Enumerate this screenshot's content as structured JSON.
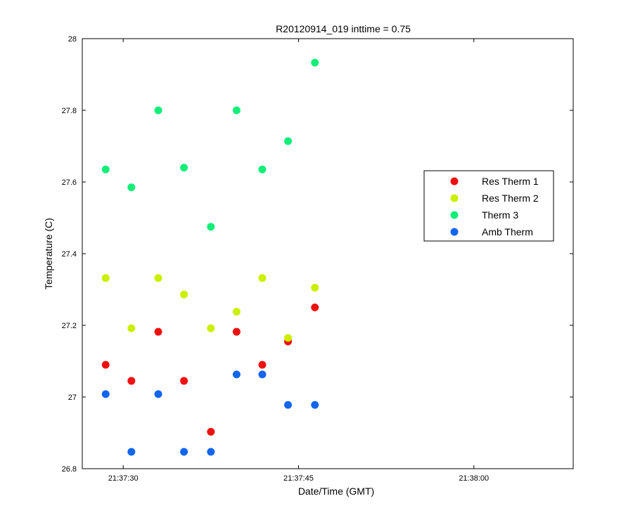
{
  "chart_data": {
    "type": "scatter",
    "title": "R20120914_019 inttime = 0.75",
    "xlabel": "Date/Time (GMT)",
    "ylabel": "Temperature (C)",
    "x_unit": "time (GMT, hh:mm:ss)",
    "xlim": [
      "21:37:26.5",
      "21:38:08.5"
    ],
    "ylim": [
      26.8,
      28.0
    ],
    "x_ticks": [
      {
        "value": "21:37:30",
        "label": "21:37:30"
      },
      {
        "value": "21:37:45",
        "label": "21:37:45"
      },
      {
        "value": "21:38:00",
        "label": "21:38:00"
      }
    ],
    "y_ticks": [
      {
        "value": 26.8,
        "label": "26.8"
      },
      {
        "value": 27.0,
        "label": "27"
      },
      {
        "value": 27.2,
        "label": "27.2"
      },
      {
        "value": 27.4,
        "label": "27.4"
      },
      {
        "value": 27.6,
        "label": "27.6"
      },
      {
        "value": 27.8,
        "label": "27.8"
      },
      {
        "value": 28.0,
        "label": "28"
      }
    ],
    "x": [
      "21:37:28.5",
      "21:37:31",
      "21:37:33.3",
      "21:37:35.5",
      "21:37:38",
      "21:37:40.3",
      "21:37:42.7",
      "21:37:45"
    ],
    "grid": false,
    "legend_position": "right",
    "series": [
      {
        "name": "Res Therm 1",
        "color": "#ee1111",
        "points": [
          {
            "x": "21:37:28.5",
            "y": 27.09
          },
          {
            "x": "21:37:30.7",
            "y": 27.045
          },
          {
            "x": "21:37:33.0",
            "y": 27.182
          },
          {
            "x": "21:37:35.2",
            "y": 27.045
          },
          {
            "x": "21:37:37.5",
            "y": 26.903
          },
          {
            "x": "21:37:39.7",
            "y": 27.182
          },
          {
            "x": "21:37:41.9",
            "y": 27.09
          },
          {
            "x": "21:37:44.1",
            "y": 27.155
          },
          {
            "x": "21:37:46.4",
            "y": 27.25
          }
        ]
      },
      {
        "name": "Res Therm 2",
        "color": "#ccee00",
        "points": [
          {
            "x": "21:37:28.5",
            "y": 27.332
          },
          {
            "x": "21:37:30.7",
            "y": 27.192
          },
          {
            "x": "21:37:33.0",
            "y": 27.332
          },
          {
            "x": "21:37:35.2",
            "y": 27.286
          },
          {
            "x": "21:37:37.5",
            "y": 27.192
          },
          {
            "x": "21:37:39.7",
            "y": 27.238
          },
          {
            "x": "21:37:41.9",
            "y": 27.332
          },
          {
            "x": "21:37:44.1",
            "y": 27.165
          },
          {
            "x": "21:37:46.4",
            "y": 27.305
          }
        ]
      },
      {
        "name": "Therm 3",
        "color": "#11ee77",
        "points": [
          {
            "x": "21:37:28.5",
            "y": 27.635
          },
          {
            "x": "21:37:30.7",
            "y": 27.585
          },
          {
            "x": "21:37:33.0",
            "y": 27.8
          },
          {
            "x": "21:37:35.2",
            "y": 27.64
          },
          {
            "x": "21:37:37.5",
            "y": 27.475
          },
          {
            "x": "21:37:39.7",
            "y": 27.8
          },
          {
            "x": "21:37:41.9",
            "y": 27.635
          },
          {
            "x": "21:37:44.1",
            "y": 27.714
          },
          {
            "x": "21:37:46.4",
            "y": 27.933
          }
        ]
      },
      {
        "name": "Amb Therm",
        "color": "#1166ee",
        "points": [
          {
            "x": "21:37:28.5",
            "y": 27.008
          },
          {
            "x": "21:37:30.7",
            "y": 26.847
          },
          {
            "x": "21:37:33.0",
            "y": 27.008
          },
          {
            "x": "21:37:35.2",
            "y": 26.847
          },
          {
            "x": "21:37:37.5",
            "y": 26.847
          },
          {
            "x": "21:37:39.7",
            "y": 27.063
          },
          {
            "x": "21:37:41.9",
            "y": 27.063
          },
          {
            "x": "21:37:44.1",
            "y": 26.978
          },
          {
            "x": "21:37:46.4",
            "y": 26.978
          }
        ]
      }
    ]
  }
}
